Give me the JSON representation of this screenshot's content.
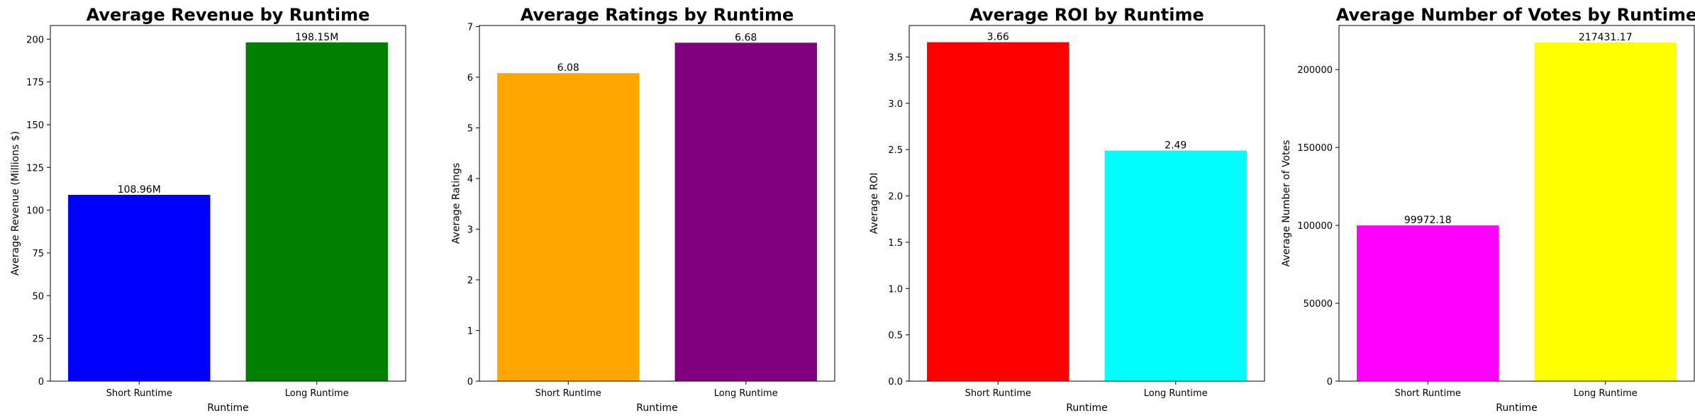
{
  "chart_data": [
    {
      "type": "bar",
      "title": "Average Revenue by Runtime",
      "xlabel": "Runtime",
      "ylabel": "Average Revenue (Millions $)",
      "categories": [
        "Short Runtime",
        "Long Runtime"
      ],
      "values": [
        108.96,
        198.15
      ],
      "value_labels": [
        "108.96M",
        "198.15M"
      ],
      "colors": [
        "#0000ff",
        "#008000"
      ],
      "ylim": [
        0,
        208
      ],
      "yticks": [
        0,
        25,
        50,
        75,
        100,
        125,
        150,
        175,
        200
      ],
      "ytick_labels": [
        "0",
        "25",
        "50",
        "75",
        "100",
        "125",
        "150",
        "175",
        "200"
      ],
      "grid": false
    },
    {
      "type": "bar",
      "title": "Average Ratings by Runtime",
      "xlabel": "Runtime",
      "ylabel": "Average Ratings",
      "categories": [
        "Short Runtime",
        "Long Runtime"
      ],
      "values": [
        6.08,
        6.68
      ],
      "value_labels": [
        "6.08",
        "6.68"
      ],
      "colors": [
        "#ffa500",
        "#800080"
      ],
      "ylim": [
        0,
        7.02
      ],
      "yticks": [
        0,
        1,
        2,
        3,
        4,
        5,
        6,
        7
      ],
      "ytick_labels": [
        "0",
        "1",
        "2",
        "3",
        "4",
        "5",
        "6",
        "7"
      ],
      "grid": false
    },
    {
      "type": "bar",
      "title": "Average ROI by Runtime",
      "xlabel": "Runtime",
      "ylabel": "Average ROI",
      "categories": [
        "Short Runtime",
        "Long Runtime"
      ],
      "values": [
        3.66,
        2.49
      ],
      "value_labels": [
        "3.66",
        "2.49"
      ],
      "colors": [
        "#ff0000",
        "#00ffff"
      ],
      "ylim": [
        0,
        3.84
      ],
      "yticks": [
        0,
        0.5,
        1,
        1.5,
        2,
        2.5,
        3,
        3.5
      ],
      "ytick_labels": [
        "0.0",
        "0.5",
        "1.0",
        "1.5",
        "2.0",
        "2.5",
        "3.0",
        "3.5"
      ],
      "grid": false
    },
    {
      "type": "bar",
      "title": "Average Number of Votes by Runtime",
      "xlabel": "Runtime",
      "ylabel": "Average Number of Votes",
      "categories": [
        "Short Runtime",
        "Long Runtime"
      ],
      "values": [
        99972.18,
        217431.17
      ],
      "value_labels": [
        "99972.18",
        "217431.17"
      ],
      "colors": [
        "#ff00ff",
        "#ffff00"
      ],
      "ylim": [
        0,
        228300
      ],
      "yticks": [
        0,
        50000,
        100000,
        150000,
        200000
      ],
      "ytick_labels": [
        "0",
        "50000",
        "100000",
        "150000",
        "200000"
      ],
      "grid": false
    }
  ]
}
